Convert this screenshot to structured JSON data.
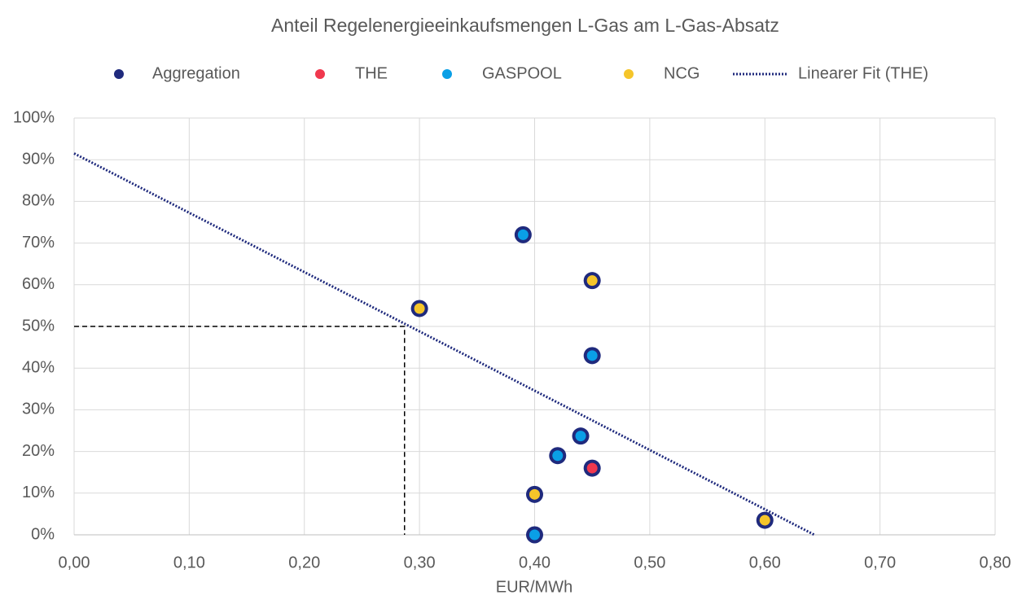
{
  "chart_data": {
    "type": "scatter",
    "title": "Anteil Regelenergieeinkaufsmengen L-Gas am L-Gas-Absatz",
    "x_label": "EUR/MWh",
    "xlim": [
      0,
      0.8
    ],
    "xticks": [
      {
        "value": 0,
        "label": "0,00"
      },
      {
        "value": 0.1,
        "label": "0,10"
      },
      {
        "value": 0.2,
        "label": "0,20"
      },
      {
        "value": 0.3,
        "label": "0,30"
      },
      {
        "value": 0.4,
        "label": "0,40"
      },
      {
        "value": 0.5,
        "label": "0,50"
      },
      {
        "value": 0.6,
        "label": "0,60"
      },
      {
        "value": 0.7,
        "label": "0,70"
      },
      {
        "value": 0.8,
        "label": "0,80"
      }
    ],
    "ylim": [
      0,
      100
    ],
    "yticks": [
      {
        "value": 0,
        "label": "0%"
      },
      {
        "value": 10,
        "label": "10%"
      },
      {
        "value": 20,
        "label": "20%"
      },
      {
        "value": 30,
        "label": "30%"
      },
      {
        "value": 40,
        "label": "40%"
      },
      {
        "value": 50,
        "label": "50%"
      },
      {
        "value": 60,
        "label": "60%"
      },
      {
        "value": 70,
        "label": "70%"
      },
      {
        "value": 80,
        "label": "80%"
      },
      {
        "value": 90,
        "label": "90%"
      },
      {
        "value": 100,
        "label": "100%"
      }
    ],
    "grid": true,
    "legend": "top",
    "series": [
      {
        "name": "Aggregation",
        "color": "#1f2a7d",
        "x": [
          0.39,
          0.45,
          0.3,
          0.45,
          0.44,
          0.42,
          0.45,
          0.4,
          0.4,
          0.6
        ],
        "values": [
          72,
          61,
          54.3,
          43,
          23.7,
          19,
          16,
          9.7,
          0,
          3.5
        ]
      },
      {
        "name": "THE",
        "color": "#f0384e",
        "x": [
          0.45
        ],
        "values": [
          16
        ]
      },
      {
        "name": "GASPOOL",
        "color": "#0a9fe6",
        "x": [
          0.39,
          0.45,
          0.44,
          0.42,
          0.4
        ],
        "values": [
          72,
          43,
          23.7,
          19,
          0
        ]
      },
      {
        "name": "NCG",
        "color": "#f5c52a",
        "x": [
          0.45,
          0.3,
          0.4,
          0.6
        ],
        "values": [
          61,
          54.3,
          9.7,
          3.5
        ]
      },
      {
        "name": "Linearer Fit (THE)",
        "type": "line",
        "style": "dotted",
        "color": "#1f2a7d",
        "x": [
          0,
          0.643
        ],
        "values": [
          91.5,
          0
        ]
      }
    ],
    "guides": {
      "color": "#000000",
      "style": "dashed",
      "x": [
        0,
        0.287,
        0.287
      ],
      "values": [
        50,
        50,
        0
      ]
    }
  }
}
